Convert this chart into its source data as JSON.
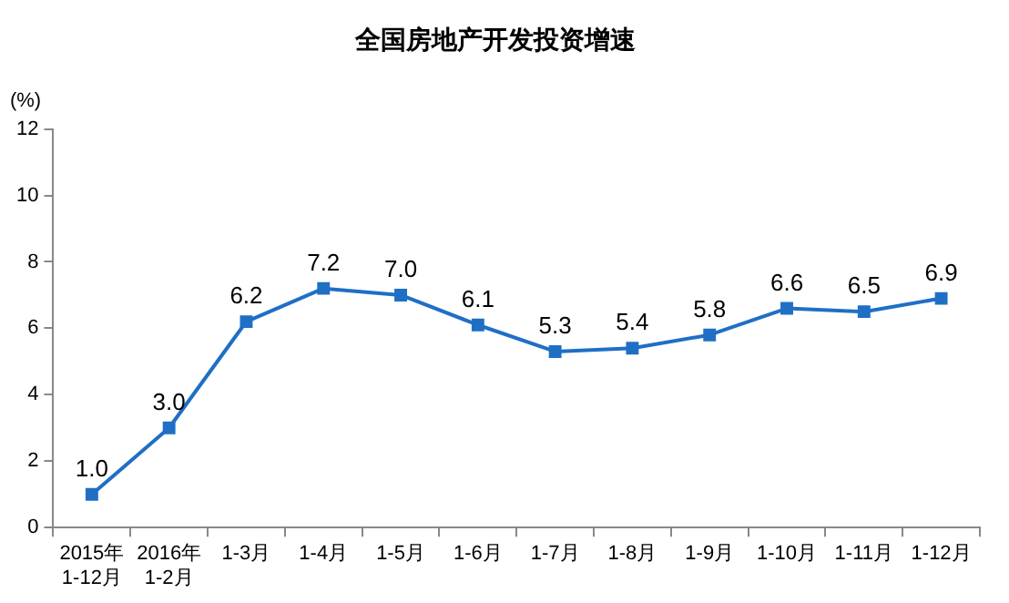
{
  "chart_data": {
    "type": "line",
    "title": "全国房地产开发投资增速",
    "ylabel": "(%)",
    "categories": [
      "2015年\n1-12月",
      "2016年\n1-2月",
      "1-3月",
      "1-4月",
      "1-5月",
      "1-6月",
      "1-7月",
      "1-8月",
      "1-9月",
      "1-10月",
      "1-11月",
      "1-12月"
    ],
    "series": [
      {
        "color": "#1f6fc5",
        "values": [
          1.0,
          3.0,
          6.2,
          7.2,
          7.0,
          6.1,
          5.3,
          5.4,
          5.8,
          6.6,
          6.5,
          6.9
        ],
        "value_labels": [
          "1.0",
          "3.0",
          "6.2",
          "7.2",
          "7.0",
          "6.1",
          "5.3",
          "5.4",
          "5.8",
          "6.6",
          "6.5",
          "6.9"
        ]
      }
    ],
    "ylim": [
      0,
      12
    ],
    "yticks": [
      0,
      2,
      4,
      6,
      8,
      10,
      12
    ],
    "grid": false,
    "legend": false,
    "marker": "square",
    "line_style": "solid"
  }
}
